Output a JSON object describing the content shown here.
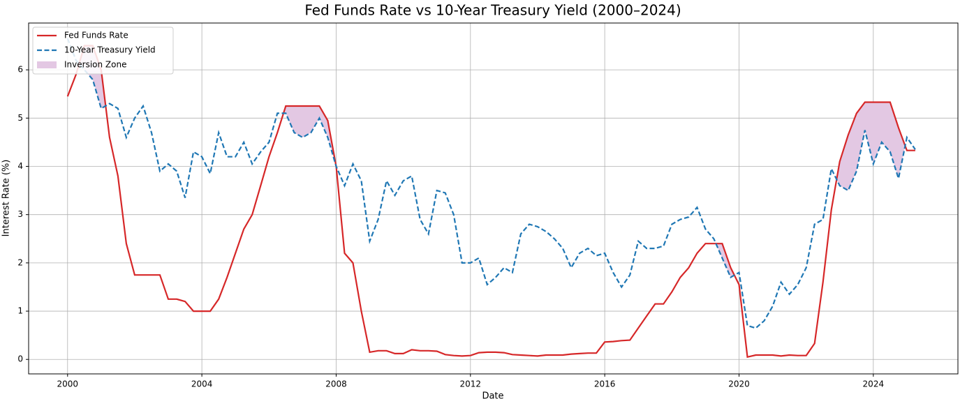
{
  "chart_data": {
    "type": "line",
    "title": "Fed Funds Rate vs 10-Year Treasury Yield (2000–2024)",
    "x_label": "Date",
    "y_label": "Interest Rate (%)",
    "x": [
      2000.0,
      2000.25,
      2000.5,
      2000.75,
      2001.0,
      2001.25,
      2001.5,
      2001.75,
      2002.0,
      2002.25,
      2002.5,
      2002.75,
      2003.0,
      2003.25,
      2003.5,
      2003.75,
      2004.0,
      2004.25,
      2004.5,
      2004.75,
      2005.0,
      2005.25,
      2005.5,
      2005.75,
      2006.0,
      2006.25,
      2006.5,
      2006.75,
      2007.0,
      2007.25,
      2007.5,
      2007.75,
      2008.0,
      2008.25,
      2008.5,
      2008.75,
      2009.0,
      2009.25,
      2009.5,
      2009.75,
      2010.0,
      2010.25,
      2010.5,
      2010.75,
      2011.0,
      2011.25,
      2011.5,
      2011.75,
      2012.0,
      2012.25,
      2012.5,
      2012.75,
      2013.0,
      2013.25,
      2013.5,
      2013.75,
      2014.0,
      2014.25,
      2014.5,
      2014.75,
      2015.0,
      2015.25,
      2015.5,
      2015.75,
      2016.0,
      2016.25,
      2016.5,
      2016.75,
      2017.0,
      2017.25,
      2017.5,
      2017.75,
      2018.0,
      2018.25,
      2018.5,
      2018.75,
      2019.0,
      2019.25,
      2019.5,
      2019.75,
      2020.0,
      2020.25,
      2020.5,
      2020.75,
      2021.0,
      2021.25,
      2021.5,
      2021.75,
      2022.0,
      2022.25,
      2022.5,
      2022.75,
      2023.0,
      2023.25,
      2023.5,
      2023.75,
      2024.0,
      2024.25,
      2024.5,
      2024.75,
      2025.0,
      2025.25
    ],
    "series": [
      {
        "name": "Fed Funds Rate",
        "color": "#d62728",
        "linestyle": "solid",
        "values": [
          5.45,
          5.9,
          6.5,
          6.5,
          6.0,
          4.6,
          3.8,
          2.4,
          1.75,
          1.75,
          1.75,
          1.75,
          1.25,
          1.25,
          1.2,
          1.0,
          1.0,
          1.0,
          1.25,
          1.7,
          2.2,
          2.7,
          3.0,
          3.6,
          4.2,
          4.7,
          5.25,
          5.25,
          5.25,
          5.25,
          5.25,
          4.95,
          4.0,
          2.2,
          2.0,
          1.0,
          0.15,
          0.18,
          0.18,
          0.12,
          0.12,
          0.2,
          0.18,
          0.18,
          0.17,
          0.1,
          0.08,
          0.07,
          0.08,
          0.14,
          0.15,
          0.15,
          0.14,
          0.1,
          0.09,
          0.08,
          0.07,
          0.09,
          0.09,
          0.09,
          0.11,
          0.12,
          0.13,
          0.13,
          0.36,
          0.37,
          0.39,
          0.4,
          0.65,
          0.9,
          1.15,
          1.15,
          1.4,
          1.7,
          1.9,
          2.2,
          2.4,
          2.4,
          2.4,
          1.9,
          1.55,
          0.05,
          0.09,
          0.09,
          0.09,
          0.07,
          0.09,
          0.08,
          0.08,
          0.33,
          1.6,
          3.1,
          4.1,
          4.65,
          5.1,
          5.33,
          5.33,
          5.33,
          5.33,
          4.8,
          4.33,
          4.33
        ]
      },
      {
        "name": "10-Year Treasury Yield",
        "color": "#1f77b4",
        "linestyle": "dashed",
        "values": [
          6.65,
          6.2,
          6.0,
          5.8,
          5.2,
          5.3,
          5.2,
          4.6,
          5.0,
          5.25,
          4.7,
          3.9,
          4.05,
          3.9,
          3.35,
          4.3,
          4.2,
          3.85,
          4.7,
          4.2,
          4.2,
          4.5,
          4.05,
          4.3,
          4.5,
          5.1,
          5.1,
          4.7,
          4.6,
          4.7,
          5.0,
          4.6,
          4.0,
          3.6,
          4.05,
          3.7,
          2.45,
          2.9,
          3.7,
          3.4,
          3.7,
          3.8,
          2.9,
          2.6,
          3.5,
          3.45,
          3.0,
          2.0,
          2.0,
          2.1,
          1.55,
          1.7,
          1.9,
          1.8,
          2.6,
          2.8,
          2.75,
          2.65,
          2.5,
          2.3,
          1.9,
          2.2,
          2.3,
          2.15,
          2.2,
          1.8,
          1.5,
          1.75,
          2.45,
          2.3,
          2.3,
          2.35,
          2.8,
          2.9,
          2.95,
          3.15,
          2.7,
          2.5,
          2.1,
          1.7,
          1.8,
          0.7,
          0.65,
          0.8,
          1.1,
          1.6,
          1.35,
          1.55,
          1.9,
          2.8,
          2.9,
          3.95,
          3.6,
          3.5,
          3.9,
          4.75,
          4.05,
          4.5,
          4.3,
          3.75,
          4.6,
          4.35
        ]
      }
    ],
    "fill": {
      "name": "Inversion Zone",
      "color": "#e3c8e3"
    },
    "xlim": [
      1998.84,
      2026.52
    ],
    "xticks": [
      2000,
      2004,
      2008,
      2012,
      2016,
      2020,
      2024
    ],
    "ylim": [
      -0.3,
      6.97
    ],
    "yticks": [
      0,
      1,
      2,
      3,
      4,
      5,
      6
    ],
    "grid": true,
    "legend": "upper-left"
  }
}
